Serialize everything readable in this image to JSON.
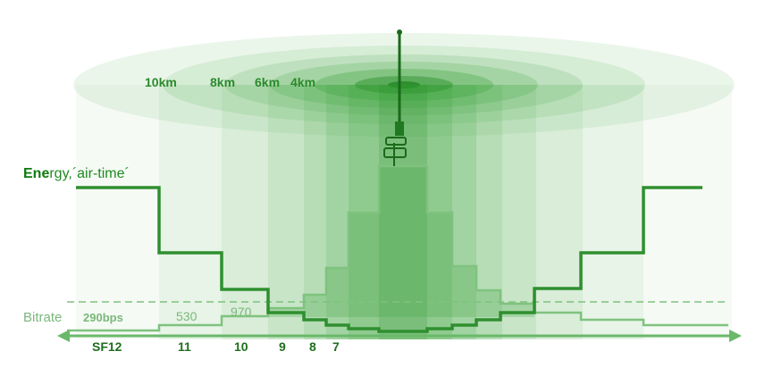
{
  "ranges": [
    "10km",
    "8km",
    "6km",
    "4km"
  ],
  "energy_label_bold": "Ene",
  "energy_label_rest": "rgy,´air-time´",
  "bitrate_label": "Bitrate",
  "bitrates": [
    "290bps",
    "530",
    "970"
  ],
  "spreading_factors": [
    "SF12",
    "11",
    "10",
    "9",
    "8",
    "7"
  ],
  "colors": {
    "dark_green": "#2f8f2f",
    "light_green": "#7fc27f",
    "zone_fill": "#3aa33a"
  }
}
